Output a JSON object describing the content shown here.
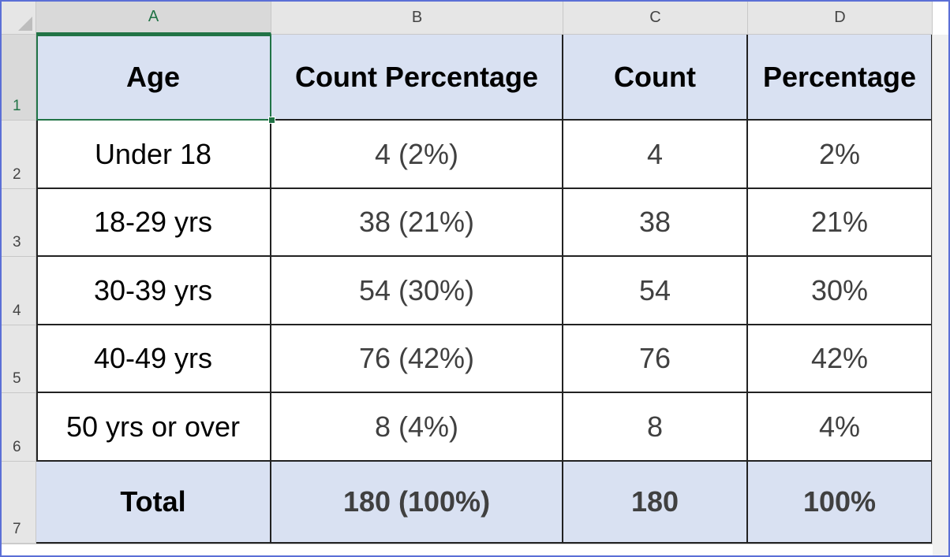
{
  "columns": [
    "A",
    "B",
    "C",
    "D"
  ],
  "rows": [
    "1",
    "2",
    "3",
    "4",
    "5",
    "6",
    "7"
  ],
  "table": {
    "header": [
      "Age",
      "Count Percentage",
      "Count",
      "Percentage"
    ],
    "body": [
      [
        "Under 18",
        "4 (2%)",
        "4",
        "2%"
      ],
      [
        "18-29 yrs",
        "38 (21%)",
        "38",
        "21%"
      ],
      [
        "30-39 yrs",
        "54 (30%)",
        "54",
        "30%"
      ],
      [
        "40-49 yrs",
        "76 (42%)",
        "76",
        "42%"
      ],
      [
        "50 yrs or over",
        "8 (4%)",
        "8",
        "4%"
      ]
    ],
    "total": [
      "Total",
      "180 (100%)",
      "180",
      "100%"
    ]
  },
  "selected_cell": "A1",
  "colors": {
    "header_fill": "#d9e1f2",
    "selection": "#217346",
    "frame": "#5b6fd6"
  }
}
